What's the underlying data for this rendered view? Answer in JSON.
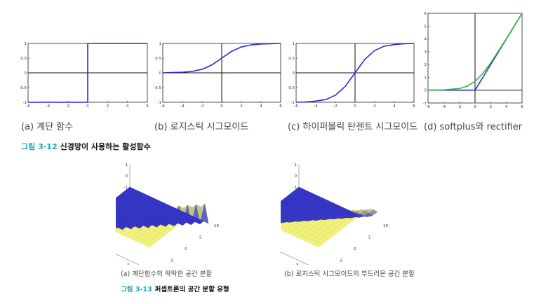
{
  "figure_3_12": {
    "number": "그림 3-12",
    "title": "신경망이 사용하는 활성함수",
    "subcaptions": [
      "(a) 계단 함수",
      "(b) 로지스틱 시그모이드",
      "(c) 하이퍼볼릭 탄젠트 시그모이드",
      "(d) softplus와 rectifier"
    ]
  },
  "figure_3_13": {
    "number": "그림 3-13",
    "title": "퍼셉트론의 공간 분할 유형",
    "subcaptions": [
      "(a) 계단함수의 딱딱한 공간 분할",
      "(b) 로지스틱 시그모이드의 부드러운 공간 분할"
    ]
  },
  "chart_data": [
    {
      "type": "line",
      "function": "step",
      "xlim": [
        -6,
        6
      ],
      "ylim": [
        -1,
        1
      ],
      "xticks": [
        "-6",
        "-4",
        "-2",
        "0",
        "2",
        "4",
        "6"
      ],
      "yticks": [
        "1",
        "0.5",
        "0",
        "-0.5",
        "-1"
      ],
      "x": [
        -6,
        0,
        0,
        6
      ],
      "y": [
        -1,
        -1,
        1,
        1
      ],
      "line_color": "#2b2bd9"
    },
    {
      "type": "line",
      "function": "logistic sigmoid",
      "xlim": [
        -6,
        6
      ],
      "ylim": [
        -1,
        1
      ],
      "xticks": [
        "-6",
        "-4",
        "-2",
        "0",
        "2",
        "4",
        "6"
      ],
      "yticks": [
        "1",
        "0.5",
        "0",
        "-0.5",
        "-1"
      ],
      "x": [
        -6,
        -5,
        -4,
        -3,
        -2,
        -1,
        0,
        1,
        2,
        3,
        4,
        5,
        6
      ],
      "y": [
        0.0,
        0.01,
        0.02,
        0.05,
        0.12,
        0.27,
        0.5,
        0.73,
        0.88,
        0.95,
        0.98,
        0.99,
        1.0
      ],
      "line_color": "#2b2bd9"
    },
    {
      "type": "line",
      "function": "hyperbolic tangent sigmoid",
      "xlim": [
        -6,
        6
      ],
      "ylim": [
        -1,
        1
      ],
      "xticks": [
        "-6",
        "-4",
        "-2",
        "0",
        "2",
        "4",
        "6"
      ],
      "yticks": [
        "1",
        "0.5",
        "0",
        "-0.5",
        "-1"
      ],
      "x": [
        -6,
        -5,
        -4,
        -3,
        -2,
        -1,
        0,
        1,
        2,
        3,
        4,
        5,
        6
      ],
      "y": [
        -1.0,
        -0.99,
        -0.96,
        -0.91,
        -0.76,
        -0.46,
        0.0,
        0.46,
        0.76,
        0.91,
        0.96,
        0.99,
        1.0
      ],
      "line_color": "#2b2bd9"
    },
    {
      "type": "line",
      "function": "softplus and rectifier",
      "xlim": [
        -6,
        6
      ],
      "ylim": [
        -1,
        6
      ],
      "xticks": [
        "-6",
        "-4",
        "-2",
        "0",
        "2",
        "4",
        "6"
      ],
      "yticks": [
        "6",
        "5",
        "4",
        "3",
        "2",
        "1",
        "0",
        "-1"
      ],
      "series": [
        {
          "x": [
            -6,
            -4,
            -2,
            0,
            2,
            4,
            6
          ],
          "y": [
            0,
            0,
            0,
            0,
            2,
            4,
            6
          ],
          "color": "#2b2bd9"
        },
        {
          "x": [
            -6,
            -4,
            -2,
            -1,
            0,
            1,
            2,
            4,
            6
          ],
          "y": [
            0.0,
            0.02,
            0.13,
            0.31,
            0.69,
            1.31,
            2.13,
            4.02,
            6.0
          ],
          "color": "#2bbf2b"
        }
      ]
    },
    {
      "type": "surface",
      "function": "step (hard split)",
      "zticks": [
        "1",
        "0",
        "-1"
      ],
      "xticks": [
        "-10",
        "-5",
        "0",
        "5",
        "10"
      ],
      "yticks": [
        "10",
        "5",
        "0",
        "-5",
        "-10"
      ],
      "low_color": "#3535c8",
      "high_color": "#f2f27a"
    },
    {
      "type": "surface",
      "function": "logistic sigmoid (soft split)",
      "zticks": [
        "1",
        "0",
        "-1"
      ],
      "xticks": [
        "-10",
        "-5",
        "0",
        "5",
        "10"
      ],
      "yticks": [
        "10",
        "5",
        "0",
        "-5",
        "-10"
      ],
      "low_color": "#3535c8",
      "high_color": "#f2f27a"
    }
  ]
}
